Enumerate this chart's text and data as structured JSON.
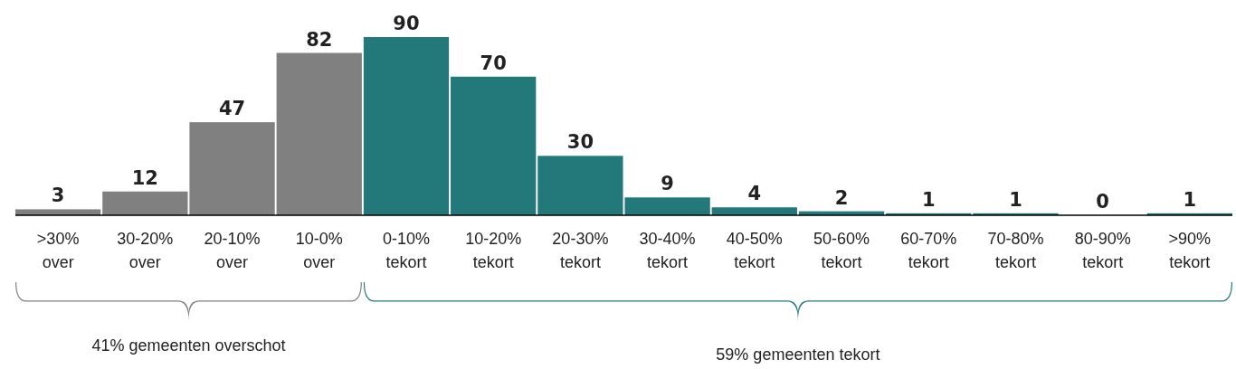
{
  "chart_data": {
    "type": "bar",
    "categories": [
      ">30% over",
      "30-20% over",
      "20-10% over",
      "10-0% over",
      "0-10% tekort",
      "10-20% tekort",
      "20-30% tekort",
      "30-40% tekort",
      "40-50% tekort",
      "50-60% tekort",
      "60-70% tekort",
      "70-80% tekort",
      "80-90% tekort",
      ">90% tekort"
    ],
    "values": [
      3,
      12,
      47,
      82,
      90,
      70,
      30,
      9,
      4,
      2,
      1,
      1,
      0,
      1
    ],
    "colors": [
      "#808080",
      "#808080",
      "#808080",
      "#808080",
      "#23787a",
      "#23787a",
      "#23787a",
      "#23787a",
      "#23787a",
      "#23787a",
      "#23787a",
      "#23787a",
      "#23787a",
      "#23787a"
    ],
    "data_labels": true,
    "annotations": [
      "41% gemeenten overschot",
      "59% gemeenten tekort"
    ]
  }
}
